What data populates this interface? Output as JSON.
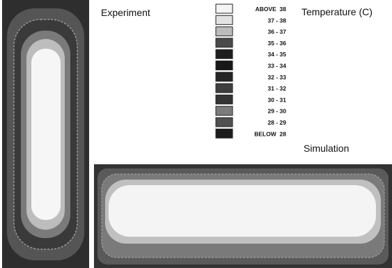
{
  "labels": {
    "experiment": "Experiment",
    "simulation": "Simulation",
    "legend_title": "Temperature (C)"
  },
  "legend": [
    {
      "label": "ABOVE  38",
      "color": "#f4f4f4"
    },
    {
      "label": "37 - 38",
      "color": "#e2e2e2"
    },
    {
      "label": "36 - 37",
      "color": "#bcbcbc"
    },
    {
      "label": "35 - 36",
      "color": "#4a4a4a"
    },
    {
      "label": "34 - 35",
      "color": "#1e1e1e"
    },
    {
      "label": "33 - 34",
      "color": "#181818"
    },
    {
      "label": "32 - 33",
      "color": "#262626"
    },
    {
      "label": "31 - 32",
      "color": "#3e3e3e"
    },
    {
      "label": "30 - 31",
      "color": "#343434"
    },
    {
      "label": "29 - 30",
      "color": "#7c7c7c"
    },
    {
      "label": "28 - 29",
      "color": "#505050"
    },
    {
      "label": "BELOW  28",
      "color": "#1c1c1c"
    }
  ]
}
